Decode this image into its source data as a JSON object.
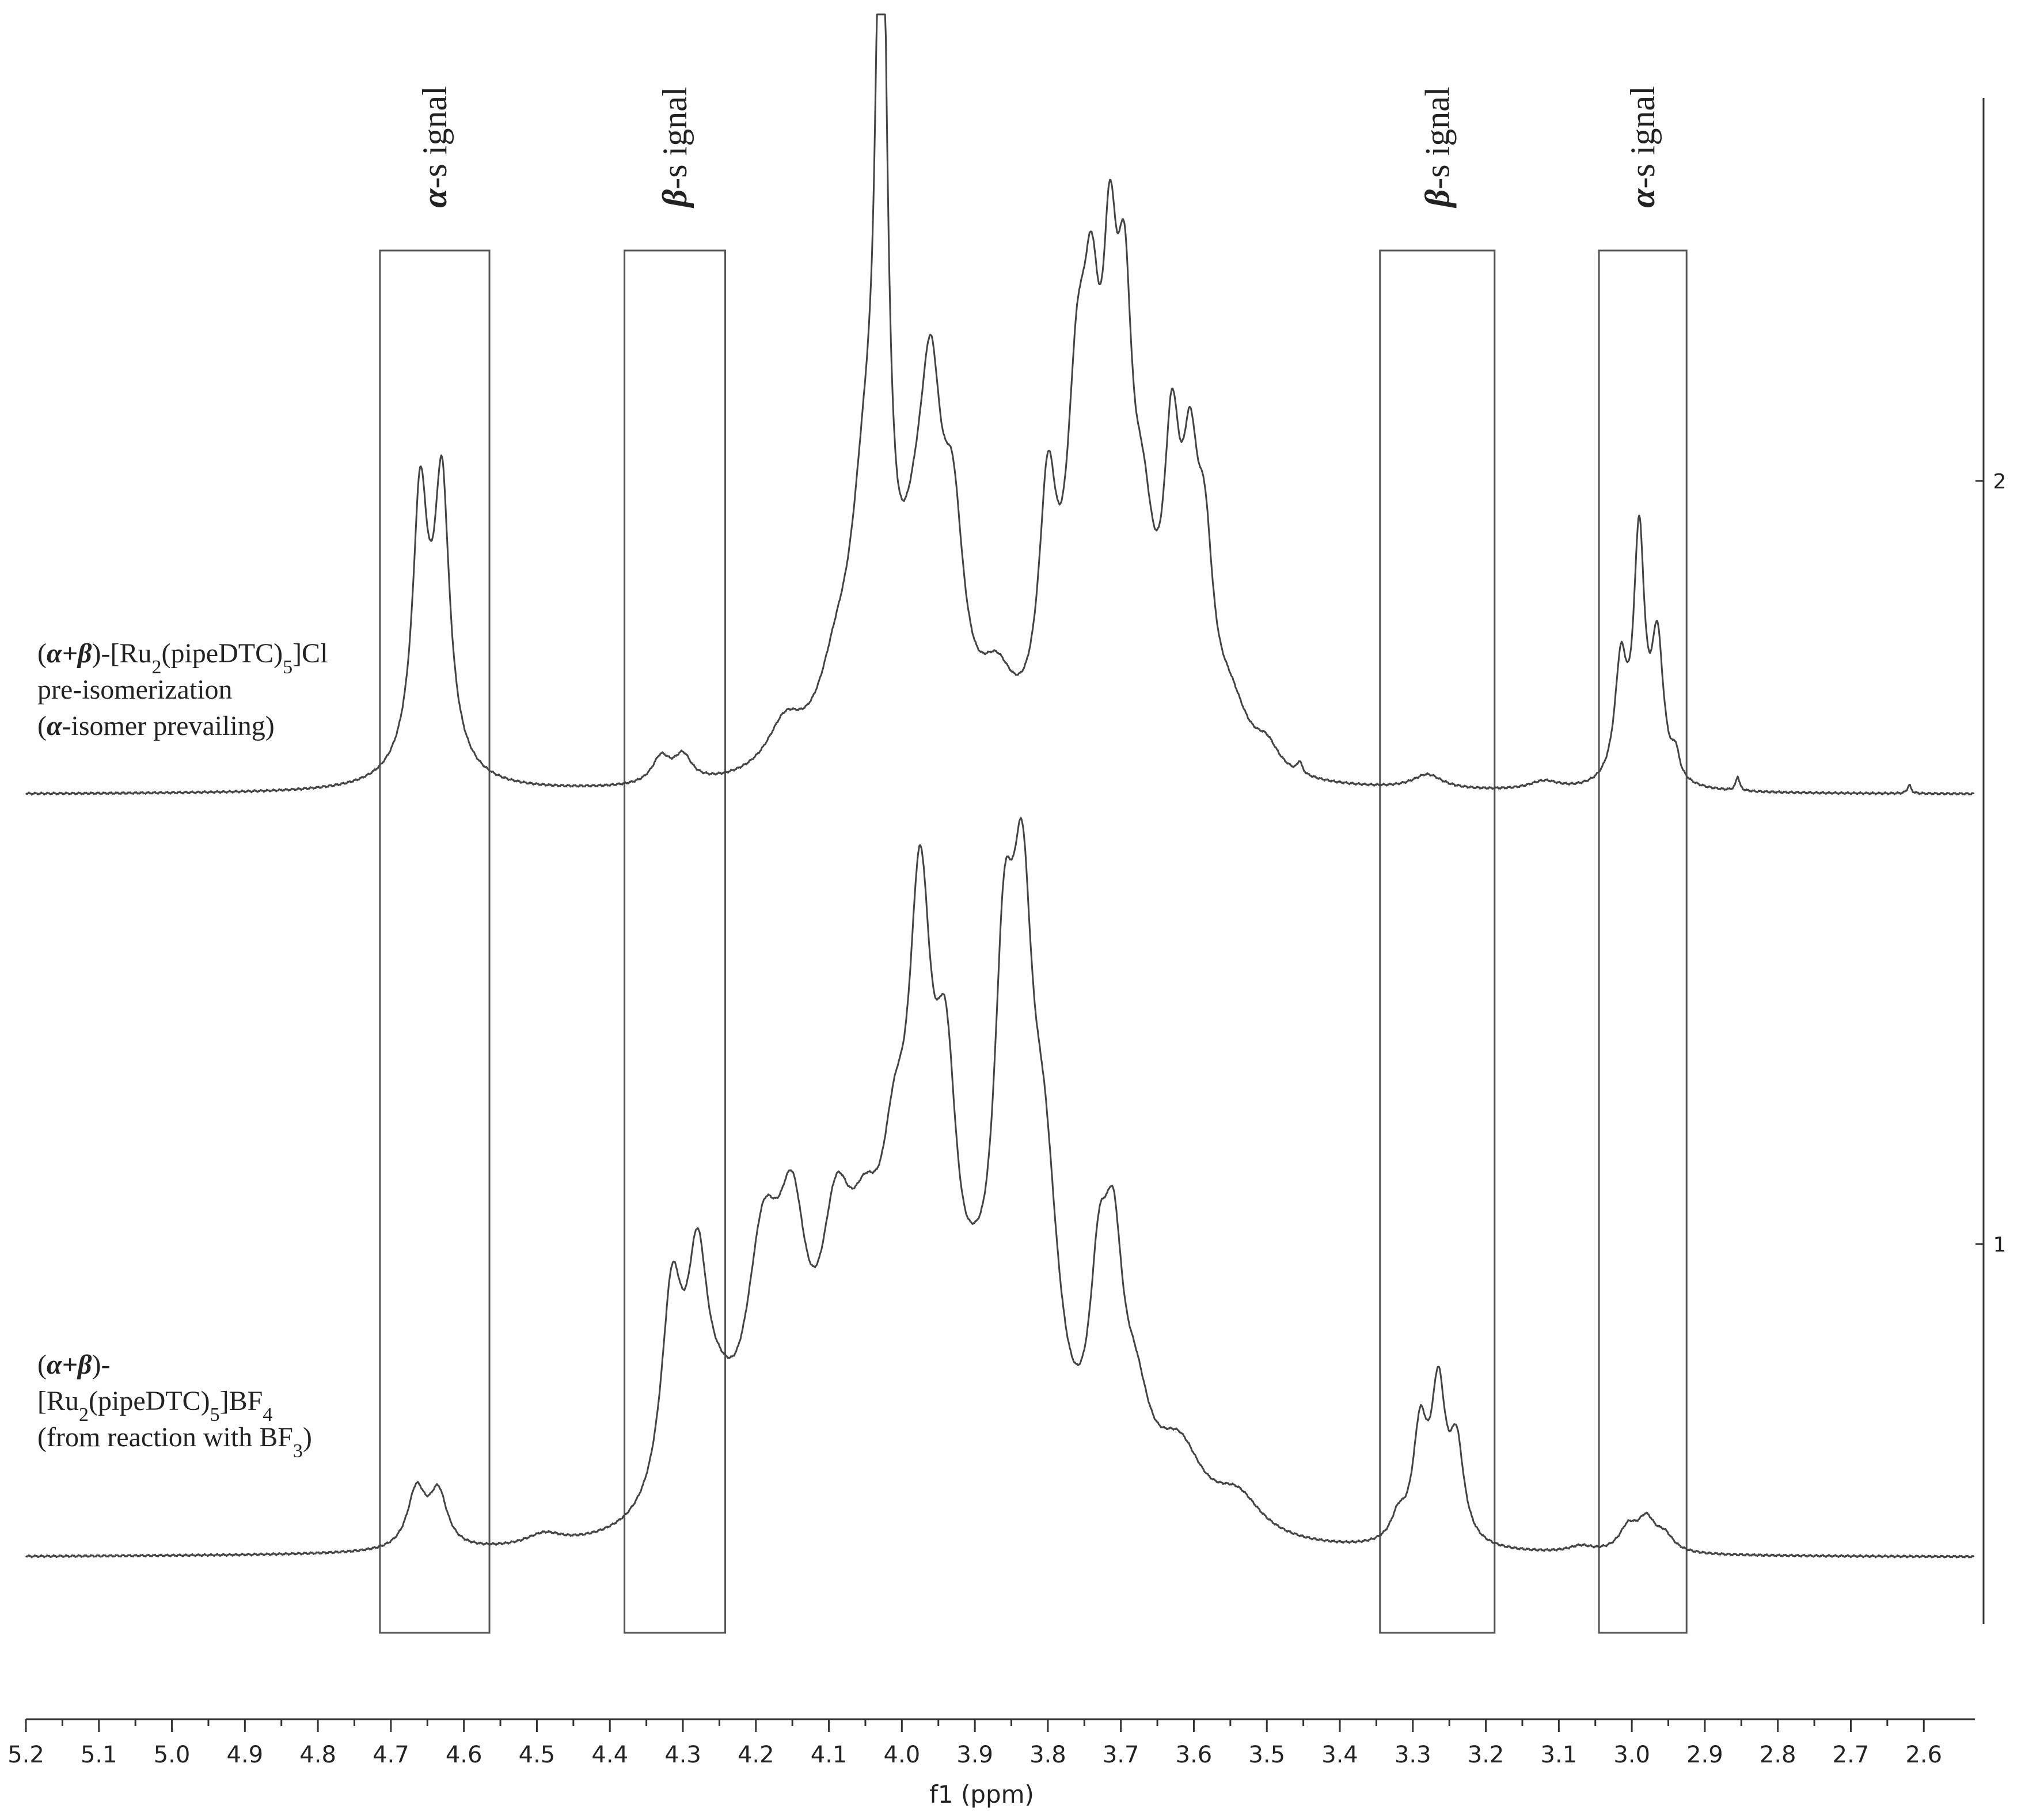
{
  "chart_data": {
    "type": "line",
    "title": "",
    "xlabel": "f1 (ppm)",
    "ylabel": "",
    "xlim": [
      5.2,
      2.53
    ],
    "x_reversed": true,
    "x_ticks": [
      "5.2",
      "5.1",
      "5.0",
      "4.9",
      "4.8",
      "4.7",
      "4.6",
      "4.5",
      "4.4",
      "4.3",
      "4.2",
      "4.1",
      "4.0",
      "3.9",
      "3.8",
      "3.7",
      "3.6",
      "3.5",
      "3.4",
      "3.3",
      "3.2",
      "3.1",
      "3.0",
      "2.9",
      "2.8",
      "2.7",
      "2.6"
    ],
    "trace_ticks": [
      "2",
      "1"
    ],
    "grid": false,
    "legend": "none",
    "series": [
      {
        "name": "(α+β)-[Ru2(pipeDTC)5]Cl pre-isomerization (α-isomer prevailing)",
        "trace": "2",
        "color": "#444444",
        "label_lines": [
          {
            "parts": [
              [
                "(",
                ""
              ],
              [
                "α+β",
                "b"
              ],
              [
                ")-[Ru",
                ""
              ],
              [
                "2",
                "sub"
              ],
              [
                "(pipeDTC)",
                ""
              ],
              [
                "5",
                "sub"
              ],
              [
                "]Cl",
                ""
              ]
            ]
          },
          {
            "parts": [
              [
                "pre-isomerization",
                ""
              ]
            ]
          },
          {
            "parts": [
              [
                "(",
                ""
              ],
              [
                "α",
                "b"
              ],
              [
                "-isomer prevailing)",
                ""
              ]
            ]
          }
        ],
        "peaks": [
          {
            "x": 4.66,
            "h": 0.42,
            "w": 0.012
          },
          {
            "x": 4.63,
            "h": 0.44,
            "w": 0.012
          },
          {
            "x": 4.645,
            "h": 0.1,
            "w": 0.035
          },
          {
            "x": 4.33,
            "h": 0.045,
            "w": 0.015
          },
          {
            "x": 4.3,
            "h": 0.045,
            "w": 0.015
          },
          {
            "x": 4.16,
            "h": 0.08,
            "w": 0.03
          },
          {
            "x": 4.09,
            "h": 0.12,
            "w": 0.03
          },
          {
            "x": 4.05,
            "h": 0.4,
            "w": 0.025
          },
          {
            "x": 4.028,
            "h": 1.4,
            "w": 0.009
          },
          {
            "x": 3.96,
            "h": 0.45,
            "w": 0.018
          },
          {
            "x": 3.93,
            "h": 0.32,
            "w": 0.018
          },
          {
            "x": 3.98,
            "h": 0.25,
            "w": 0.03
          },
          {
            "x": 3.87,
            "h": 0.12,
            "w": 0.03
          },
          {
            "x": 3.8,
            "h": 0.4,
            "w": 0.015
          },
          {
            "x": 3.76,
            "h": 0.5,
            "w": 0.018
          },
          {
            "x": 3.74,
            "h": 0.5,
            "w": 0.015
          },
          {
            "x": 3.715,
            "h": 0.6,
            "w": 0.013
          },
          {
            "x": 3.695,
            "h": 0.55,
            "w": 0.013
          },
          {
            "x": 3.67,
            "h": 0.3,
            "w": 0.02
          },
          {
            "x": 3.63,
            "h": 0.45,
            "w": 0.014
          },
          {
            "x": 3.605,
            "h": 0.38,
            "w": 0.014
          },
          {
            "x": 3.585,
            "h": 0.28,
            "w": 0.014
          },
          {
            "x": 3.55,
            "h": 0.1,
            "w": 0.03
          },
          {
            "x": 3.5,
            "h": 0.04,
            "w": 0.02
          },
          {
            "x": 3.455,
            "h": 0.02,
            "w": 0.004
          },
          {
            "x": 3.28,
            "h": 0.025,
            "w": 0.025
          },
          {
            "x": 3.12,
            "h": 0.015,
            "w": 0.025
          },
          {
            "x": 3.015,
            "h": 0.2,
            "w": 0.01
          },
          {
            "x": 2.99,
            "h": 0.42,
            "w": 0.009
          },
          {
            "x": 2.965,
            "h": 0.24,
            "w": 0.01
          },
          {
            "x": 2.94,
            "h": 0.04,
            "w": 0.006
          },
          {
            "x": 2.855,
            "h": 0.025,
            "w": 0.003
          },
          {
            "x": 2.62,
            "h": 0.015,
            "w": 0.003
          }
        ]
      },
      {
        "name": "(α+β)-[Ru2(pipeDTC)5]BF4 (from reaction with BF3)",
        "trace": "1",
        "color": "#444444",
        "label_lines": [
          {
            "parts": [
              [
                "(",
                ""
              ],
              [
                "α+β",
                "b"
              ],
              [
                ")-",
                ""
              ]
            ]
          },
          {
            "parts": [
              [
                "[Ru",
                ""
              ],
              [
                "2",
                "sub"
              ],
              [
                "(pipeDTC)",
                ""
              ],
              [
                "5",
                "sub"
              ],
              [
                "]BF",
                ""
              ],
              [
                "4",
                "sub"
              ]
            ]
          },
          {
            "parts": [
              [
                "(from reaction with BF",
                ""
              ],
              [
                "3",
                "sub"
              ],
              [
                ")",
                ""
              ]
            ]
          }
        ],
        "peaks": [
          {
            "x": 4.665,
            "h": 0.075,
            "w": 0.015
          },
          {
            "x": 4.635,
            "h": 0.07,
            "w": 0.015
          },
          {
            "x": 4.49,
            "h": 0.015,
            "w": 0.03
          },
          {
            "x": 4.315,
            "h": 0.27,
            "w": 0.018
          },
          {
            "x": 4.28,
            "h": 0.27,
            "w": 0.018
          },
          {
            "x": 4.25,
            "h": 0.08,
            "w": 0.03
          },
          {
            "x": 4.19,
            "h": 0.3,
            "w": 0.03
          },
          {
            "x": 4.15,
            "h": 0.28,
            "w": 0.025
          },
          {
            "x": 4.09,
            "h": 0.28,
            "w": 0.028
          },
          {
            "x": 4.05,
            "h": 0.22,
            "w": 0.03
          },
          {
            "x": 4.01,
            "h": 0.28,
            "w": 0.025
          },
          {
            "x": 3.975,
            "h": 0.62,
            "w": 0.02
          },
          {
            "x": 3.94,
            "h": 0.4,
            "w": 0.02
          },
          {
            "x": 3.9,
            "h": 0.12,
            "w": 0.03
          },
          {
            "x": 3.86,
            "h": 0.52,
            "w": 0.018
          },
          {
            "x": 3.835,
            "h": 0.55,
            "w": 0.018
          },
          {
            "x": 3.805,
            "h": 0.35,
            "w": 0.025
          },
          {
            "x": 3.73,
            "h": 0.23,
            "w": 0.016
          },
          {
            "x": 3.71,
            "h": 0.26,
            "w": 0.016
          },
          {
            "x": 3.68,
            "h": 0.12,
            "w": 0.025
          },
          {
            "x": 3.62,
            "h": 0.1,
            "w": 0.04
          },
          {
            "x": 3.54,
            "h": 0.05,
            "w": 0.04
          },
          {
            "x": 3.32,
            "h": 0.03,
            "w": 0.012
          },
          {
            "x": 3.29,
            "h": 0.14,
            "w": 0.012
          },
          {
            "x": 3.265,
            "h": 0.19,
            "w": 0.012
          },
          {
            "x": 3.24,
            "h": 0.12,
            "w": 0.012
          },
          {
            "x": 3.07,
            "h": 0.008,
            "w": 0.02
          },
          {
            "x": 3.005,
            "h": 0.03,
            "w": 0.015
          },
          {
            "x": 2.98,
            "h": 0.04,
            "w": 0.015
          },
          {
            "x": 2.955,
            "h": 0.02,
            "w": 0.015
          }
        ]
      }
    ],
    "annotations": [
      {
        "label": "α-s ignal",
        "bold": "α",
        "rest": "-s ignal",
        "x_left": 4.715,
        "x_right": 4.565
      },
      {
        "label": "β-s ignal",
        "bold": "β",
        "rest": "-s ignal",
        "x_left": 4.38,
        "x_right": 4.242
      },
      {
        "label": "β-s ignal",
        "bold": "β",
        "rest": "-s ignal",
        "x_left": 3.345,
        "x_right": 3.188
      },
      {
        "label": "α-s ignal",
        "bold": "α",
        "rest": "-s ignal",
        "x_left": 3.045,
        "x_right": 2.925
      }
    ]
  }
}
